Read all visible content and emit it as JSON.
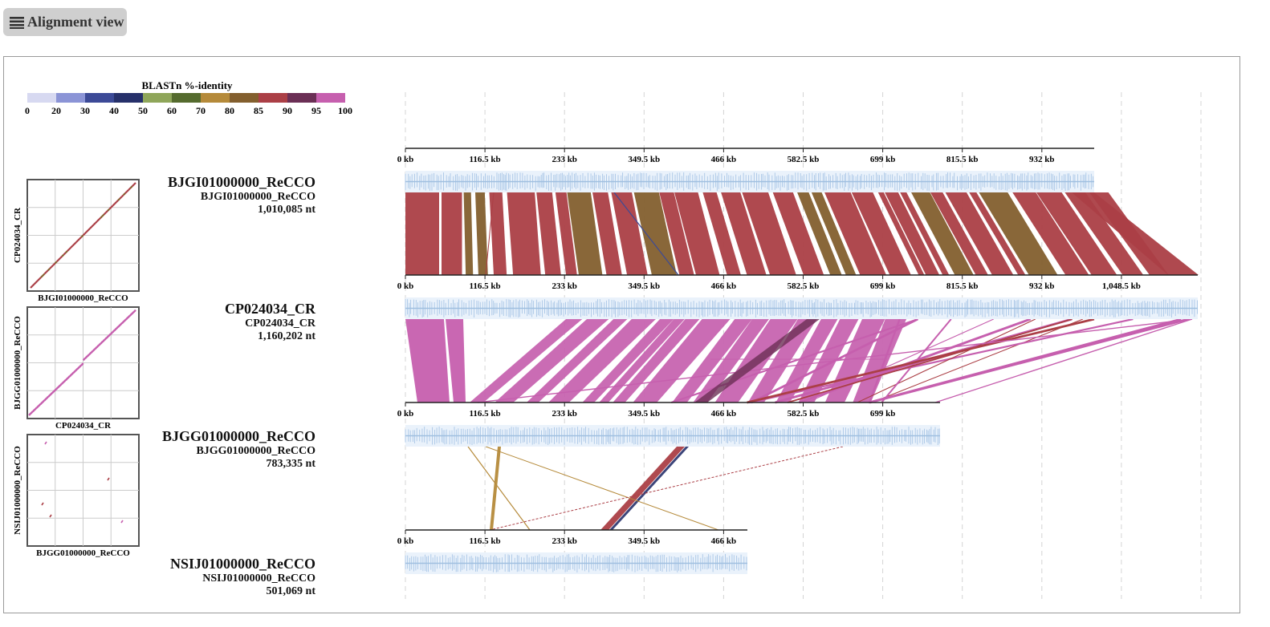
{
  "toolbar": {
    "view_label": "Alignment view",
    "menu_icon": "hamburger-icon"
  },
  "legend": {
    "title": "BLASTn %-identity",
    "ticks": [
      "0",
      "20",
      "30",
      "40",
      "50",
      "60",
      "70",
      "80",
      "85",
      "90",
      "95",
      "100"
    ],
    "colors": [
      "#d7d9f1",
      "#8b94d6",
      "#3c4a97",
      "#26306a",
      "#8fa65a",
      "#556b2e",
      "#b58a3a",
      "#835f2e",
      "#ab3f46",
      "#6b2f55",
      "#c65fae"
    ]
  },
  "genomes": [
    {
      "title": "BJGI01000000_ReCCO",
      "subtitle": "BJGI01000000_ReCCO",
      "length": "1,010,085 nt"
    },
    {
      "title": "CP024034_CR",
      "subtitle": "CP024034_CR",
      "length": "1,160,202 nt"
    },
    {
      "title": "BJGG01000000_ReCCO",
      "subtitle": "BJGG01000000_ReCCO",
      "length": "783,335 nt"
    },
    {
      "title": "NSIJ01000000_ReCCO",
      "subtitle": "NSIJ01000000_ReCCO",
      "length": "501,069 nt"
    }
  ],
  "axes": [
    {
      "ticks": [
        "0 kb",
        "116.5 kb",
        "233 kb",
        "349.5 kb",
        "466 kb",
        "582.5 kb",
        "699 kb",
        "815.5 kb",
        "932 kb"
      ]
    },
    {
      "ticks": [
        "0 kb",
        "116.5 kb",
        "233 kb",
        "349.5 kb",
        "466 kb",
        "582.5 kb",
        "699 kb",
        "815.5 kb",
        "932 kb",
        "1,048.5 kb"
      ]
    },
    {
      "ticks": [
        "0 kb",
        "116.5 kb",
        "233 kb",
        "349.5 kb",
        "466 kb",
        "582.5 kb",
        "699 kb"
      ]
    },
    {
      "ticks": [
        "0 kb",
        "116.5 kb",
        "233 kb",
        "349.5 kb",
        "466 kb"
      ]
    }
  ],
  "dotplots": [
    {
      "xlabel": "BJGI01000000_ReCCO",
      "ylabel": "CP024034_CR",
      "color": "#ab3f46"
    },
    {
      "xlabel": "CP024034_CR",
      "ylabel": "BJGG01000000_ReCCO",
      "color": "#c65fae"
    },
    {
      "xlabel": "BJGG01000000_ReCCO",
      "ylabel": "NSIJ01000000_ReCCO",
      "color": "#ab3f46"
    }
  ],
  "colors": {
    "gene_track": "#a9c6e6",
    "grid": "#cccccc",
    "button_bg": "#cfcfcf"
  }
}
